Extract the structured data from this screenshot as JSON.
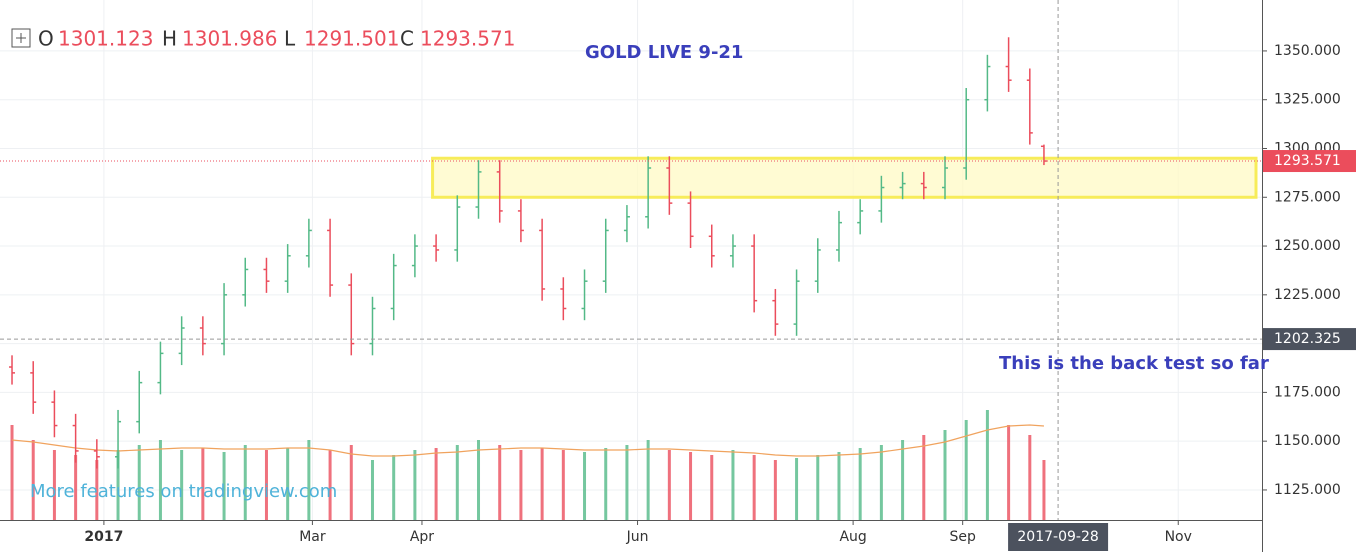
{
  "chart_data": {
    "type": "ohlc",
    "title": "GOLD LIVE 9-21",
    "annotation": "This is the back test so far",
    "watermark": "More features on tradingview.com",
    "ohlc_labels": [
      "O",
      "H",
      "L",
      "C"
    ],
    "x": [
      -26,
      -20,
      -14,
      -8,
      -2,
      4,
      10,
      16,
      22,
      28,
      34,
      40,
      46,
      52,
      58,
      64,
      70,
      76,
      82,
      88,
      94,
      100,
      106,
      112,
      118,
      124,
      130,
      136,
      142,
      148,
      154,
      160,
      166,
      172,
      178,
      184,
      190,
      196,
      202,
      208,
      214,
      220,
      226,
      232,
      238,
      244,
      250,
      256,
      262,
      266
    ],
    "open": [
      1188,
      1185,
      1170,
      1158,
      1145,
      1142,
      1160,
      1180,
      1195,
      1208,
      1200,
      1225,
      1238,
      1232,
      1245,
      1258,
      1230,
      1200,
      1218,
      1240,
      1250,
      1248,
      1270,
      1288,
      1268,
      1258,
      1228,
      1218,
      1232,
      1258,
      1265,
      1290,
      1272,
      1255,
      1245,
      1250,
      1222,
      1210,
      1232,
      1248,
      1262,
      1268,
      1280,
      1282,
      1280,
      1290,
      1325,
      1342,
      1335,
      1301.123
    ],
    "high": [
      1194,
      1191,
      1176,
      1164,
      1151,
      1166,
      1186,
      1201,
      1214,
      1214,
      1231,
      1244,
      1244,
      1251,
      1264,
      1264,
      1236,
      1224,
      1246,
      1256,
      1256,
      1276,
      1294,
      1294,
      1274,
      1264,
      1234,
      1238,
      1264,
      1271,
      1296,
      1296,
      1278,
      1261,
      1256,
      1256,
      1228,
      1238,
      1254,
      1268,
      1274,
      1286,
      1288,
      1288,
      1296,
      1331,
      1348,
      1357,
      1341,
      1301.986
    ],
    "low": [
      1179,
      1164,
      1152,
      1139,
      1136,
      1136,
      1154,
      1174,
      1189,
      1194,
      1194,
      1219,
      1226,
      1226,
      1239,
      1224,
      1194,
      1194,
      1212,
      1234,
      1242,
      1242,
      1264,
      1262,
      1252,
      1222,
      1212,
      1212,
      1226,
      1252,
      1259,
      1266,
      1249,
      1239,
      1239,
      1216,
      1204,
      1204,
      1226,
      1242,
      1256,
      1262,
      1274,
      1274,
      1274,
      1284,
      1319,
      1329,
      1302,
      1291.501
    ],
    "close": [
      1185,
      1170,
      1158,
      1145,
      1142,
      1160,
      1180,
      1195,
      1208,
      1200,
      1225,
      1238,
      1232,
      1245,
      1258,
      1230,
      1200,
      1218,
      1240,
      1250,
      1248,
      1270,
      1288,
      1268,
      1258,
      1228,
      1218,
      1232,
      1258,
      1265,
      1290,
      1272,
      1255,
      1245,
      1250,
      1222,
      1210,
      1232,
      1248,
      1262,
      1268,
      1280,
      1282,
      1280,
      1290,
      1325,
      1342,
      1335,
      1308,
      1293.571
    ],
    "volume": [
      95,
      80,
      70,
      65,
      60,
      70,
      75,
      80,
      70,
      72,
      68,
      75,
      70,
      72,
      80,
      70,
      75,
      60,
      65,
      70,
      72,
      75,
      80,
      75,
      70,
      72,
      70,
      68,
      72,
      75,
      80,
      70,
      68,
      65,
      70,
      65,
      60,
      62,
      65,
      68,
      72,
      75,
      80,
      85,
      90,
      100,
      110,
      95,
      85,
      60
    ],
    "volume_ma": [
      80,
      78,
      75,
      72,
      70,
      69,
      70,
      71,
      72,
      72,
      71,
      71,
      71,
      72,
      72,
      70,
      66,
      64,
      64,
      65,
      67,
      68,
      70,
      71,
      72,
      72,
      71,
      70,
      70,
      70,
      71,
      71,
      70,
      69,
      68,
      67,
      65,
      64,
      64,
      65,
      66,
      68,
      71,
      74,
      78,
      84,
      90,
      94,
      95,
      94
    ],
    "colors": {
      "up": "#53b987",
      "down": "#eb4d5c",
      "ma": "#f0a35e",
      "zone": "#f7ec5a"
    },
    "xlim": [
      -29.4,
      327.7
    ],
    "ylim": [
      1109.6,
      1376.1
    ],
    "yticks": [
      {
        "value": 1125,
        "label": "1125.000"
      },
      {
        "value": 1150,
        "label": "1150.000"
      },
      {
        "value": 1175,
        "label": "1175.000"
      },
      {
        "value": 1200,
        "label": "1200.000"
      },
      {
        "value": 1225,
        "label": "1225.000"
      },
      {
        "value": 1250,
        "label": "1250.000"
      },
      {
        "value": 1275,
        "label": "1275.000"
      },
      {
        "value": 1300,
        "label": "1300.000"
      },
      {
        "value": 1325,
        "label": "1325.000"
      },
      {
        "value": 1350,
        "label": "1350.000"
      }
    ],
    "xticks": [
      {
        "value": 0,
        "label": "2017"
      },
      {
        "value": 59,
        "label": "Mar"
      },
      {
        "value": 90,
        "label": "Apr"
      },
      {
        "value": 151,
        "label": "Jun"
      },
      {
        "value": 212,
        "label": "Aug"
      },
      {
        "value": 243,
        "label": "Sep"
      },
      {
        "value": 304,
        "label": "Nov"
      }
    ],
    "zone": {
      "x": [
        93,
        326
      ],
      "y": [
        1275,
        1295
      ]
    },
    "crosshair": {
      "x": {
        "value": 270,
        "label": "2017-09-28"
      },
      "y": 1202.325
    },
    "grid": true
  }
}
